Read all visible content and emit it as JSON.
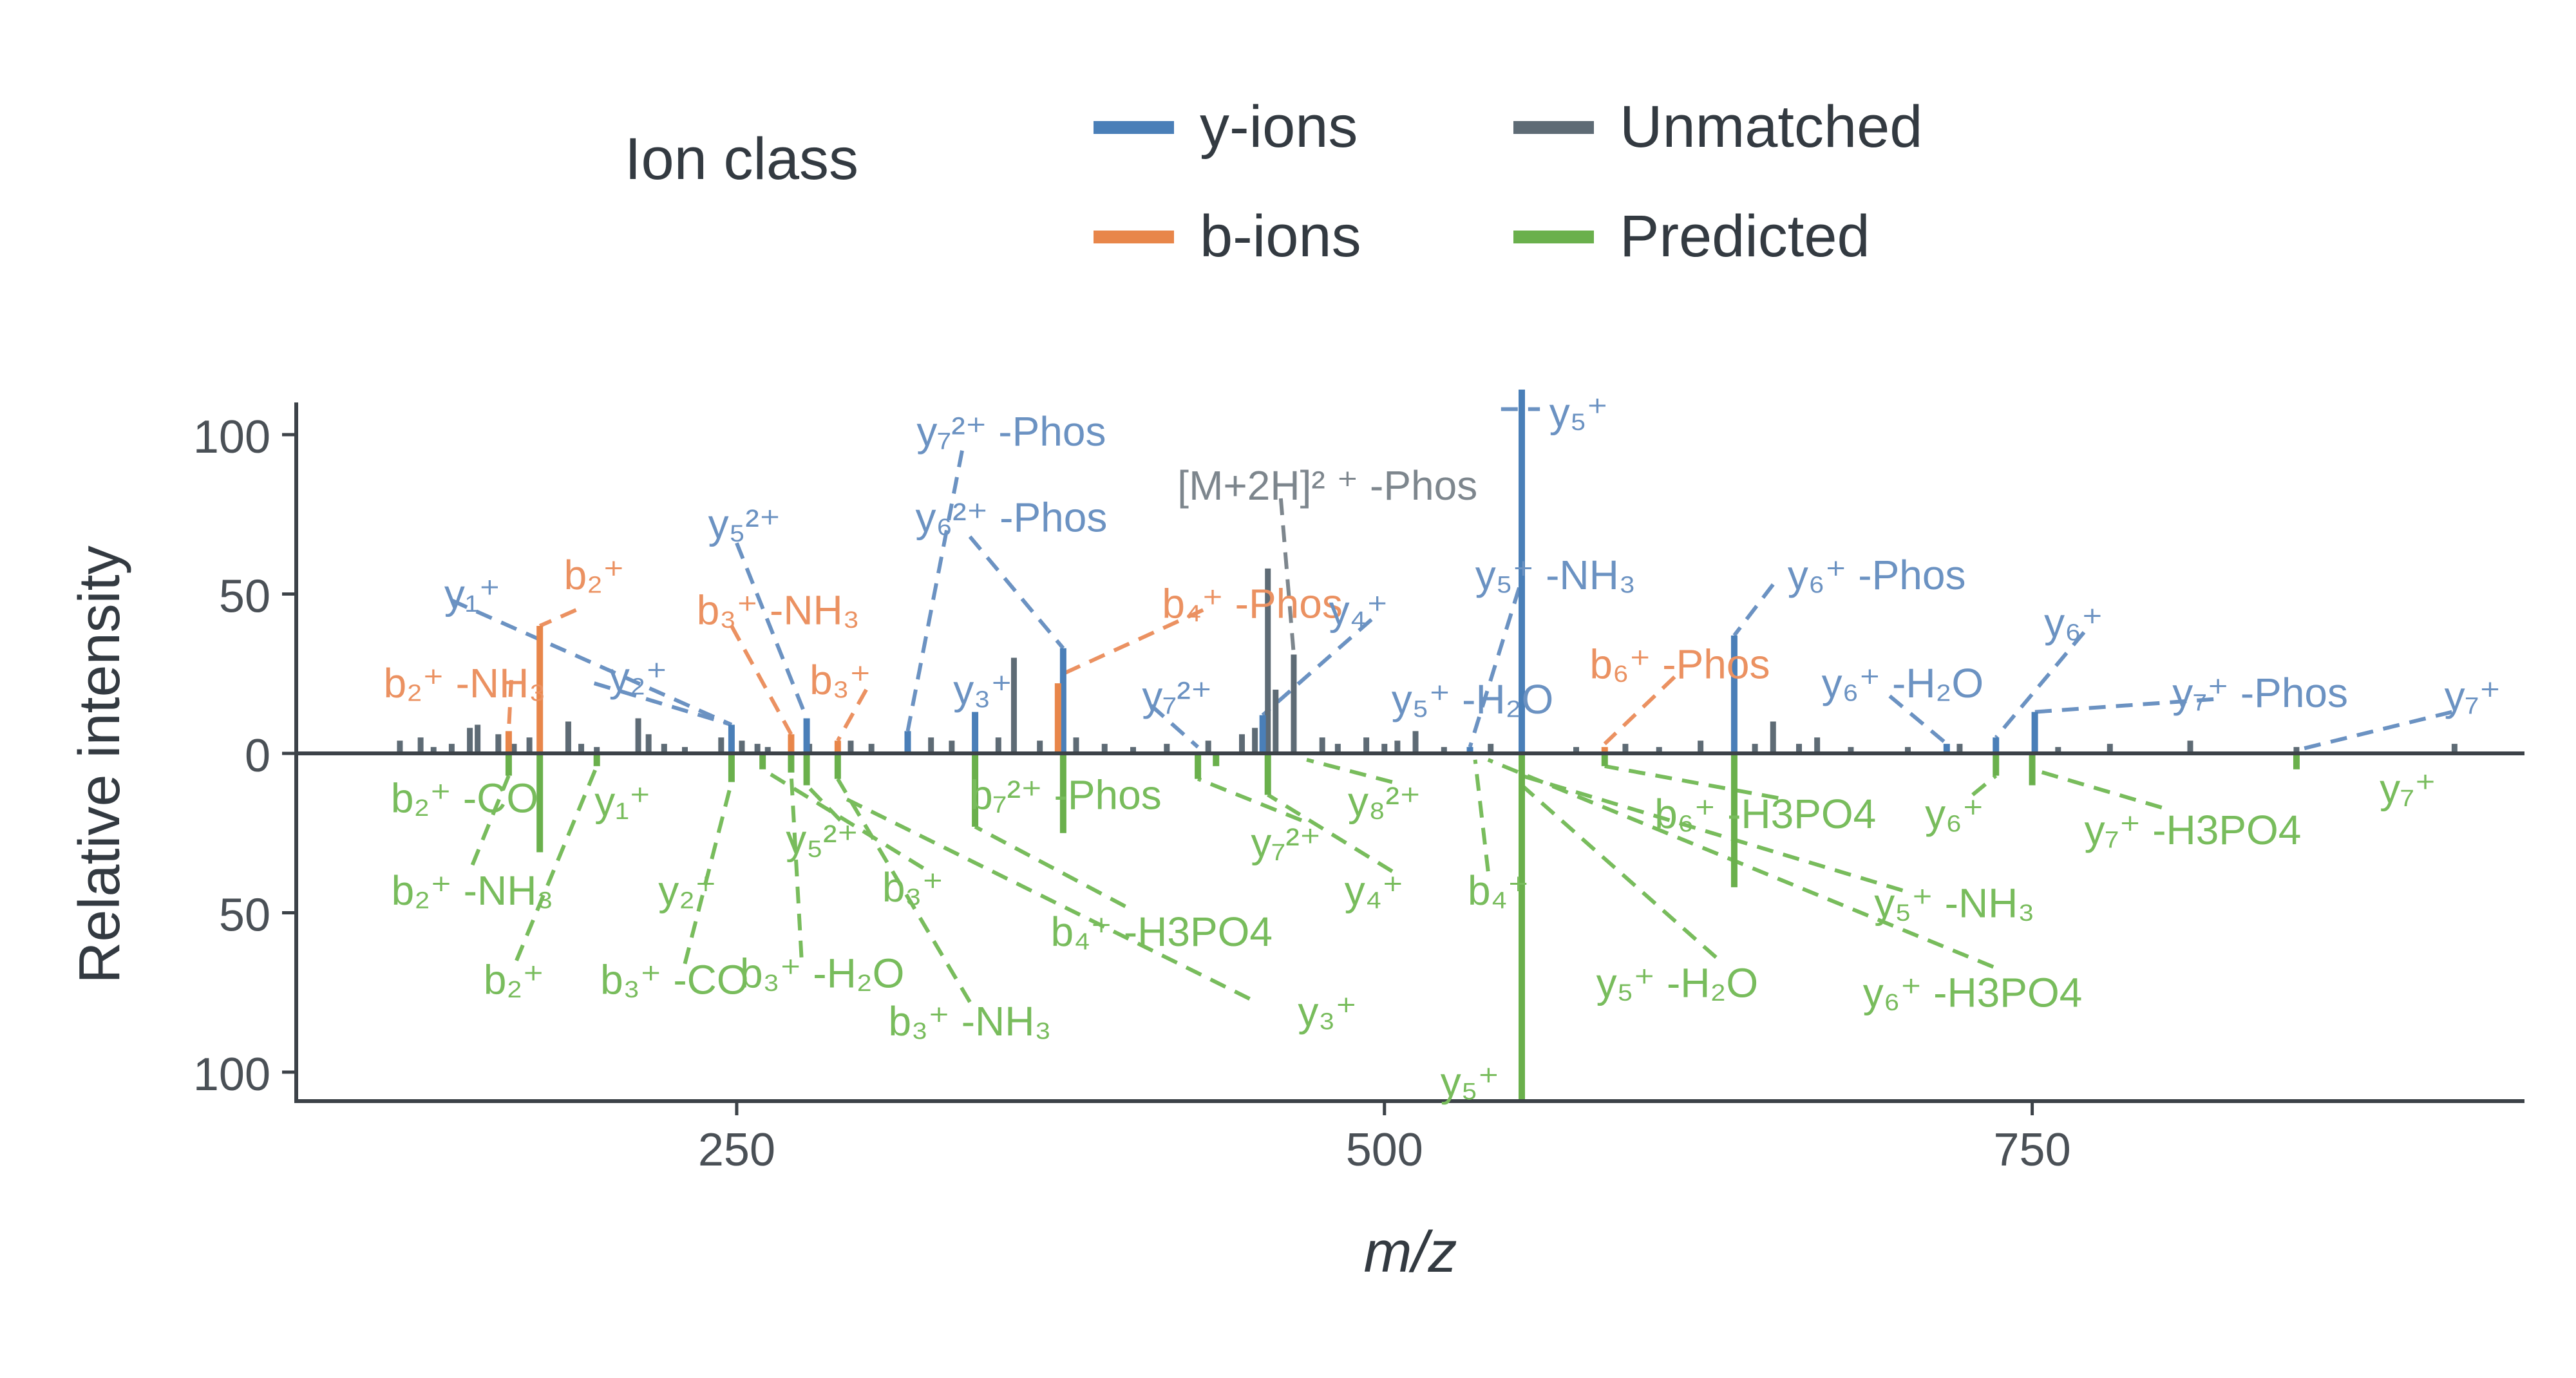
{
  "chart_data": {
    "type": "bar",
    "subtype": "mirrored mass spectrum",
    "xlabel": "m/z",
    "ylabel": "Relative intensity",
    "xlim": [
      80,
      940
    ],
    "ylim_top": [
      0,
      110
    ],
    "ylim_bottom": [
      0,
      110
    ],
    "x_ticks": [
      250,
      500,
      750
    ],
    "y_ticks_top": [
      0,
      50,
      100
    ],
    "y_ticks_bottom": [
      50,
      100
    ],
    "legend": {
      "title": "Ion class",
      "entries": [
        {
          "name": "y-ions",
          "color": "#4a7fb8"
        },
        {
          "name": "b-ions",
          "color": "#e8864a"
        },
        {
          "name": "Unmatched",
          "color": "#5e6b75"
        },
        {
          "name": "Predicted",
          "color": "#6ab04c"
        }
      ]
    },
    "colors": {
      "y": "#4a7fb8",
      "y_label": "#6b92c2",
      "b": "#e8864a",
      "b_label": "#eb9161",
      "unmatched": "#5e6b75",
      "unmatched_label": "#7d868d",
      "predicted": "#6ab04c",
      "predicted_label": "#78bc5c",
      "axis": "#3c4248"
    },
    "unmatched_peaks": [
      {
        "mz": 120,
        "i": 4
      },
      {
        "mz": 128,
        "i": 5
      },
      {
        "mz": 133,
        "i": 2
      },
      {
        "mz": 140,
        "i": 3
      },
      {
        "mz": 147,
        "i": 8
      },
      {
        "mz": 150,
        "i": 9
      },
      {
        "mz": 158,
        "i": 6
      },
      {
        "mz": 164,
        "i": 3
      },
      {
        "mz": 170,
        "i": 5
      },
      {
        "mz": 185,
        "i": 10
      },
      {
        "mz": 190,
        "i": 3
      },
      {
        "mz": 196,
        "i": 2
      },
      {
        "mz": 212,
        "i": 11
      },
      {
        "mz": 216,
        "i": 6
      },
      {
        "mz": 222,
        "i": 3
      },
      {
        "mz": 230,
        "i": 2
      },
      {
        "mz": 244,
        "i": 5
      },
      {
        "mz": 252,
        "i": 4
      },
      {
        "mz": 258,
        "i": 3
      },
      {
        "mz": 262,
        "i": 2
      },
      {
        "mz": 278,
        "i": 3
      },
      {
        "mz": 294,
        "i": 4
      },
      {
        "mz": 302,
        "i": 3
      },
      {
        "mz": 325,
        "i": 5
      },
      {
        "mz": 333,
        "i": 4
      },
      {
        "mz": 351,
        "i": 5
      },
      {
        "mz": 357,
        "i": 30
      },
      {
        "mz": 367,
        "i": 4
      },
      {
        "mz": 381,
        "i": 5
      },
      {
        "mz": 392,
        "i": 3
      },
      {
        "mz": 403,
        "i": 2
      },
      {
        "mz": 416,
        "i": 3
      },
      {
        "mz": 432,
        "i": 4
      },
      {
        "mz": 445,
        "i": 6
      },
      {
        "mz": 450,
        "i": 8
      },
      {
        "mz": 455,
        "i": 58
      },
      {
        "mz": 458,
        "i": 20
      },
      {
        "mz": 465,
        "i": 31
      },
      {
        "mz": 476,
        "i": 5
      },
      {
        "mz": 482,
        "i": 3
      },
      {
        "mz": 493,
        "i": 5
      },
      {
        "mz": 500,
        "i": 3
      },
      {
        "mz": 505,
        "i": 4
      },
      {
        "mz": 512,
        "i": 7
      },
      {
        "mz": 523,
        "i": 2
      },
      {
        "mz": 541,
        "i": 3
      },
      {
        "mz": 574,
        "i": 2
      },
      {
        "mz": 593,
        "i": 3
      },
      {
        "mz": 606,
        "i": 2
      },
      {
        "mz": 622,
        "i": 4
      },
      {
        "mz": 643,
        "i": 3
      },
      {
        "mz": 650,
        "i": 10
      },
      {
        "mz": 660,
        "i": 3
      },
      {
        "mz": 667,
        "i": 5
      },
      {
        "mz": 680,
        "i": 2
      },
      {
        "mz": 702,
        "i": 2
      },
      {
        "mz": 722,
        "i": 3
      },
      {
        "mz": 760,
        "i": 2
      },
      {
        "mz": 780,
        "i": 3
      },
      {
        "mz": 811,
        "i": 4
      },
      {
        "mz": 852,
        "i": 2
      },
      {
        "mz": 913,
        "i": 3
      }
    ],
    "matched_peaks": [
      {
        "mz": 248,
        "i": 9,
        "cls": "y"
      },
      {
        "mz": 277,
        "i": 11,
        "cls": "y"
      },
      {
        "mz": 316,
        "i": 7,
        "cls": "y"
      },
      {
        "mz": 342,
        "i": 13,
        "cls": "y"
      },
      {
        "mz": 376,
        "i": 33,
        "cls": "y"
      },
      {
        "mz": 453,
        "i": 12,
        "cls": "y"
      },
      {
        "mz": 553,
        "i": 115,
        "cls": "y"
      },
      {
        "mz": 635,
        "i": 37,
        "cls": "y"
      },
      {
        "mz": 717,
        "i": 3,
        "cls": "y"
      },
      {
        "mz": 736,
        "i": 5,
        "cls": "y"
      },
      {
        "mz": 751,
        "i": 13,
        "cls": "y"
      },
      {
        "mz": 533,
        "i": 2,
        "cls": "y"
      },
      {
        "mz": 162,
        "i": 7,
        "cls": "b"
      },
      {
        "mz": 174,
        "i": 40,
        "cls": "b"
      },
      {
        "mz": 271,
        "i": 6,
        "cls": "b"
      },
      {
        "mz": 289,
        "i": 4,
        "cls": "b"
      },
      {
        "mz": 374,
        "i": 22,
        "cls": "b"
      },
      {
        "mz": 585,
        "i": 2,
        "cls": "b"
      }
    ],
    "predicted_peaks": [
      {
        "mz": 162,
        "i": 7
      },
      {
        "mz": 174,
        "i": 31
      },
      {
        "mz": 196,
        "i": 4
      },
      {
        "mz": 248,
        "i": 9
      },
      {
        "mz": 260,
        "i": 5
      },
      {
        "mz": 271,
        "i": 6
      },
      {
        "mz": 277,
        "i": 10
      },
      {
        "mz": 289,
        "i": 8
      },
      {
        "mz": 342,
        "i": 23
      },
      {
        "mz": 376,
        "i": 25
      },
      {
        "mz": 428,
        "i": 8
      },
      {
        "mz": 435,
        "i": 4
      },
      {
        "mz": 455,
        "i": 13
      },
      {
        "mz": 553,
        "i": 110
      },
      {
        "mz": 585,
        "i": 4
      },
      {
        "mz": 635,
        "i": 42
      },
      {
        "mz": 736,
        "i": 7
      },
      {
        "mz": 750,
        "i": 10
      },
      {
        "mz": 852,
        "i": 5
      }
    ],
    "labels_top": [
      {
        "text": "y₁⁺",
        "cls": "y",
        "lx": 148,
        "ly": 50
      },
      {
        "text": "b₂⁺",
        "cls": "b",
        "lx": 195,
        "ly": 56
      },
      {
        "text": "b₂⁺ -NH₃",
        "cls": "b",
        "lx": 145,
        "ly": 22
      },
      {
        "text": "y₂⁺",
        "cls": "y",
        "lx": 212,
        "ly": 24
      },
      {
        "text": "y₅²⁺",
        "cls": "y",
        "lx": 253,
        "ly": 72
      },
      {
        "text": "b₃⁺ -NH₃",
        "cls": "b",
        "lx": 266,
        "ly": 45
      },
      {
        "text": "b₃⁺",
        "cls": "b",
        "lx": 290,
        "ly": 23
      },
      {
        "text": "y₇²⁺ -Phos",
        "cls": "y",
        "lx": 356,
        "ly": 101
      },
      {
        "text": "y₆²⁺ -Phos",
        "cls": "y",
        "lx": 356,
        "ly": 74
      },
      {
        "text": "y₃⁺",
        "cls": "y",
        "lx": 345,
        "ly": 20
      },
      {
        "text": "y₇²⁺",
        "cls": "y",
        "lx": 420,
        "ly": 18
      },
      {
        "text": "b₄⁺ -Phos",
        "cls": "b",
        "lx": 449,
        "ly": 47
      },
      {
        "text": "[M+2H]² ⁺ -Phos",
        "cls": "u",
        "lx": 478,
        "ly": 84
      },
      {
        "text": "y₄⁺",
        "cls": "y",
        "lx": 490,
        "ly": 45
      },
      {
        "text": "y₅⁺ -NH₃",
        "cls": "y",
        "lx": 566,
        "ly": 56
      },
      {
        "text": "y₅⁺ -H₂O",
        "cls": "y",
        "lx": 534,
        "ly": 17
      },
      {
        "text": "y₅⁺",
        "cls": "y",
        "lx": 575,
        "ly": 107
      },
      {
        "text": "b₆⁺ -Phos",
        "cls": "b",
        "lx": 614,
        "ly": 28
      },
      {
        "text": "y₆⁺ -Phos",
        "cls": "y",
        "lx": 690,
        "ly": 56
      },
      {
        "text": "y₆⁺ -H₂O",
        "cls": "y",
        "lx": 700,
        "ly": 22
      },
      {
        "text": "y₆⁺",
        "cls": "y",
        "lx": 766,
        "ly": 41
      },
      {
        "text": "y₇⁺ -Phos",
        "cls": "y",
        "lx": 838,
        "ly": 19
      },
      {
        "text": "y₇⁺",
        "cls": "y",
        "lx": 920,
        "ly": 18
      }
    ],
    "labels_bottom": [
      {
        "text": "b₂⁺ -CO",
        "cls": "p",
        "lx": 145,
        "ly": 14
      },
      {
        "text": "b₂⁺ -NH₃",
        "cls": "p",
        "lx": 148,
        "ly": 43
      },
      {
        "text": "b₂⁺",
        "cls": "p",
        "lx": 164,
        "ly": 71
      },
      {
        "text": "y₁⁺",
        "cls": "p",
        "lx": 206,
        "ly": 15
      },
      {
        "text": "y₂⁺",
        "cls": "p",
        "lx": 231,
        "ly": 43
      },
      {
        "text": "b₃⁺ -CO",
        "cls": "p",
        "lx": 226,
        "ly": 71
      },
      {
        "text": "b₃⁺ -H₂O",
        "cls": "p",
        "lx": 283,
        "ly": 69
      },
      {
        "text": "y₅²⁺",
        "cls": "p",
        "lx": 283,
        "ly": 27
      },
      {
        "text": "b₃⁺",
        "cls": "p",
        "lx": 318,
        "ly": 42
      },
      {
        "text": "b₃⁺ -NH₃",
        "cls": "p",
        "lx": 340,
        "ly": 84
      },
      {
        "text": "b₇²⁺ -Phos",
        "cls": "p",
        "lx": 377,
        "ly": 13
      },
      {
        "text": "b₄⁺ -H3PO4",
        "cls": "p",
        "lx": 414,
        "ly": 56
      },
      {
        "text": "y₃⁺",
        "cls": "p",
        "lx": 478,
        "ly": 81
      },
      {
        "text": "y₇²⁺",
        "cls": "p",
        "lx": 462,
        "ly": 28
      },
      {
        "text": "y₄⁺",
        "cls": "p",
        "lx": 496,
        "ly": 43
      },
      {
        "text": "y₈²⁺",
        "cls": "p",
        "lx": 500,
        "ly": 15
      },
      {
        "text": "b₄⁺",
        "cls": "p",
        "lx": 544,
        "ly": 43
      },
      {
        "text": "b₆⁺ -H3PO4",
        "cls": "p",
        "lx": 647,
        "ly": 19
      },
      {
        "text": "y₅⁺ -NH₃",
        "cls": "p",
        "lx": 720,
        "ly": 47
      },
      {
        "text": "y₅⁺ -H₂O",
        "cls": "p",
        "lx": 613,
        "ly": 72
      },
      {
        "text": "y₆⁺ -H3PO4",
        "cls": "p",
        "lx": 727,
        "ly": 75
      },
      {
        "text": "y₅⁺",
        "cls": "p",
        "lx": 533,
        "ly": 103
      },
      {
        "text": "y₆⁺",
        "cls": "p",
        "lx": 720,
        "ly": 19
      },
      {
        "text": "y₇⁺ -H3PO4",
        "cls": "p",
        "lx": 812,
        "ly": 24
      },
      {
        "text": "y₇⁺",
        "cls": "p",
        "lx": 895,
        "ly": 11
      }
    ],
    "leaders_top": [
      {
        "cls": "y",
        "x1": 140,
        "y1": 48,
        "x2": 248,
        "y2": 9
      },
      {
        "cls": "b",
        "x1": 163,
        "y1": 23,
        "x2": 162,
        "y2": 7
      },
      {
        "cls": "b",
        "x1": 188,
        "y1": 45,
        "x2": 174,
        "y2": 40
      },
      {
        "cls": "y",
        "x1": 195,
        "y1": 22,
        "x2": 248,
        "y2": 9
      },
      {
        "cls": "y",
        "x1": 250,
        "y1": 66,
        "x2": 277,
        "y2": 11
      },
      {
        "cls": "b",
        "x1": 248,
        "y1": 40,
        "x2": 271,
        "y2": 6
      },
      {
        "cls": "b",
        "x1": 300,
        "y1": 20,
        "x2": 289,
        "y2": 4
      },
      {
        "cls": "y",
        "x1": 337,
        "y1": 95,
        "x2": 316,
        "y2": 7
      },
      {
        "cls": "y",
        "x1": 340,
        "y1": 68,
        "x2": 376,
        "y2": 33
      },
      {
        "cls": "y",
        "x1": 410,
        "y1": 15,
        "x2": 428,
        "y2": 2
      },
      {
        "cls": "b",
        "x1": 430,
        "y1": 45,
        "x2": 376,
        "y2": 25
      },
      {
        "cls": "u",
        "x1": 460,
        "y1": 80,
        "x2": 465,
        "y2": 31
      },
      {
        "cls": "y",
        "x1": 495,
        "y1": 42,
        "x2": 453,
        "y2": 12
      },
      {
        "cls": "y",
        "x1": 552,
        "y1": 52,
        "x2": 533,
        "y2": 2
      },
      {
        "cls": "y",
        "x1": 545,
        "y1": 108,
        "x2": 560,
        "y2": 108
      },
      {
        "cls": "b",
        "x1": 612,
        "y1": 24,
        "x2": 585,
        "y2": 3
      },
      {
        "cls": "y",
        "x1": 650,
        "y1": 53,
        "x2": 635,
        "y2": 37
      },
      {
        "cls": "y",
        "x1": 695,
        "y1": 18,
        "x2": 717,
        "y2": 3
      },
      {
        "cls": "y",
        "x1": 770,
        "y1": 38,
        "x2": 736,
        "y2": 5
      },
      {
        "cls": "y",
        "x1": 820,
        "y1": 17,
        "x2": 751,
        "y2": 13
      },
      {
        "cls": "y",
        "x1": 912,
        "y1": 13,
        "x2": 852,
        "y2": 1
      }
    ],
    "leaders_bottom": [
      {
        "cls": "p",
        "x1": 148,
        "y1": 35,
        "x2": 162,
        "y2": 7
      },
      {
        "cls": "p",
        "x1": 165,
        "y1": 65,
        "x2": 196,
        "y2": 4
      },
      {
        "cls": "p",
        "x1": 230,
        "y1": 66,
        "x2": 248,
        "y2": 9
      },
      {
        "cls": "p",
        "x1": 275,
        "y1": 64,
        "x2": 271,
        "y2": 6
      },
      {
        "cls": "p",
        "x1": 290,
        "y1": 21,
        "x2": 277,
        "y2": 10
      },
      {
        "cls": "p",
        "x1": 322,
        "y1": 36,
        "x2": 260,
        "y2": 5
      },
      {
        "cls": "p",
        "x1": 340,
        "y1": 78,
        "x2": 289,
        "y2": 8
      },
      {
        "cls": "p",
        "x1": 448,
        "y1": 77,
        "x2": 289,
        "y2": 13
      },
      {
        "cls": "p",
        "x1": 400,
        "y1": 48,
        "x2": 342,
        "y2": 23
      },
      {
        "cls": "p",
        "x1": 468,
        "y1": 21,
        "x2": 428,
        "y2": 8
      },
      {
        "cls": "p",
        "x1": 503,
        "y1": 37,
        "x2": 455,
        "y2": 13
      },
      {
        "cls": "p",
        "x1": 503,
        "y1": 9,
        "x2": 470,
        "y2": 2
      },
      {
        "cls": "p",
        "x1": 540,
        "y1": 37,
        "x2": 535,
        "y2": 2
      },
      {
        "cls": "p",
        "x1": 700,
        "y1": 43,
        "x2": 553,
        "y2": 7
      },
      {
        "cls": "p",
        "x1": 628,
        "y1": 64,
        "x2": 553,
        "y2": 10
      },
      {
        "cls": "p",
        "x1": 735,
        "y1": 67,
        "x2": 540,
        "y2": 2
      },
      {
        "cls": "p",
        "x1": 652,
        "y1": 14,
        "x2": 585,
        "y2": 4
      },
      {
        "cls": "p",
        "x1": 727,
        "y1": 13,
        "x2": 736,
        "y2": 7
      },
      {
        "cls": "p",
        "x1": 800,
        "y1": 17,
        "x2": 750,
        "y2": 5
      }
    ]
  }
}
